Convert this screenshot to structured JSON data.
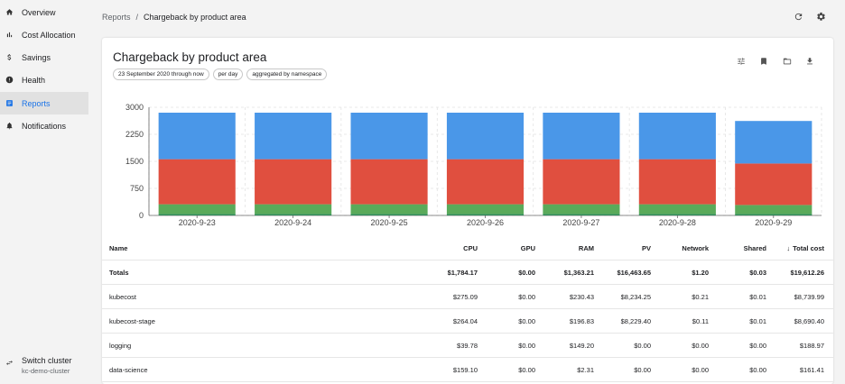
{
  "sidebar": {
    "items": [
      {
        "label": "Overview",
        "icon": "home-icon",
        "active": false
      },
      {
        "label": "Cost Allocation",
        "icon": "bar-chart-icon",
        "active": false
      },
      {
        "label": "Savings",
        "icon": "dollar-icon",
        "active": false
      },
      {
        "label": "Health",
        "icon": "alert-circle-icon",
        "active": false
      },
      {
        "label": "Reports",
        "icon": "report-icon",
        "active": true
      },
      {
        "label": "Notifications",
        "icon": "bell-icon",
        "active": false
      }
    ],
    "switch_cluster": {
      "label": "Switch cluster",
      "cluster": "kc-demo-cluster",
      "icon": "swap-icon"
    }
  },
  "breadcrumb": {
    "parent": "Reports",
    "separator": "/",
    "current": "Chargeback by product area"
  },
  "top_actions": [
    "refresh-icon",
    "settings-icon"
  ],
  "report": {
    "title": "Chargeback by product area",
    "chips": [
      "23 September 2020 through now",
      "per day",
      "aggregated by namespace"
    ],
    "actions": [
      "tune-icon",
      "bookmark-icon",
      "folder-icon",
      "download-icon"
    ]
  },
  "colors": {
    "accent": "#1a73e8",
    "blue": "#4a97e8",
    "red": "#e04f3f",
    "green": "#5aaa5a"
  },
  "chart_data": {
    "type": "bar",
    "stacked": true,
    "categories": [
      "2020-9-23",
      "2020-9-24",
      "2020-9-25",
      "2020-9-26",
      "2020-9-27",
      "2020-9-28",
      "2020-9-29"
    ],
    "series": [
      {
        "color": "#2e8b57",
        "values": [
          40,
          40,
          40,
          40,
          40,
          40,
          40
        ]
      },
      {
        "color": "#5aaa5a",
        "values": [
          270,
          270,
          270,
          270,
          270,
          270,
          250
        ]
      },
      {
        "color": "#e04f3f",
        "values": [
          1250,
          1250,
          1250,
          1250,
          1250,
          1250,
          1150
        ]
      },
      {
        "color": "#4a97e8",
        "values": [
          1290,
          1290,
          1290,
          1290,
          1290,
          1290,
          1180
        ]
      }
    ],
    "yticks": [
      0,
      750,
      1500,
      2250,
      3000
    ],
    "ylim": [
      0,
      3000
    ],
    "grid": true
  },
  "table": {
    "columns": [
      {
        "key": "name",
        "label": "Name",
        "align": "left"
      },
      {
        "key": "cpu",
        "label": "CPU",
        "align": "right"
      },
      {
        "key": "gpu",
        "label": "GPU",
        "align": "right"
      },
      {
        "key": "ram",
        "label": "RAM",
        "align": "right"
      },
      {
        "key": "pv",
        "label": "PV",
        "align": "right"
      },
      {
        "key": "network",
        "label": "Network",
        "align": "right"
      },
      {
        "key": "shared",
        "label": "Shared",
        "align": "right"
      },
      {
        "key": "total",
        "label": "Total cost",
        "align": "right",
        "sorted": "desc"
      }
    ],
    "totals": {
      "name": "Totals",
      "cpu": "$1,784.17",
      "gpu": "$0.00",
      "ram": "$1,363.21",
      "pv": "$16,463.65",
      "network": "$1.20",
      "shared": "$0.03",
      "total": "$19,612.26"
    },
    "rows": [
      {
        "name": "kubecost",
        "cpu": "$275.09",
        "gpu": "$0.00",
        "ram": "$230.43",
        "pv": "$8,234.25",
        "network": "$0.21",
        "shared": "$0.01",
        "total": "$8,739.99"
      },
      {
        "name": "kubecost-stage",
        "cpu": "$264.04",
        "gpu": "$0.00",
        "ram": "$196.83",
        "pv": "$8,229.40",
        "network": "$0.11",
        "shared": "$0.01",
        "total": "$8,690.40"
      },
      {
        "name": "logging",
        "cpu": "$39.78",
        "gpu": "$0.00",
        "ram": "$149.20",
        "pv": "$0.00",
        "network": "$0.00",
        "shared": "$0.00",
        "total": "$188.97"
      },
      {
        "name": "data-science",
        "cpu": "$159.10",
        "gpu": "$0.00",
        "ram": "$2.31",
        "pv": "$0.00",
        "network": "$0.00",
        "shared": "$0.00",
        "total": "$161.41"
      }
    ]
  }
}
